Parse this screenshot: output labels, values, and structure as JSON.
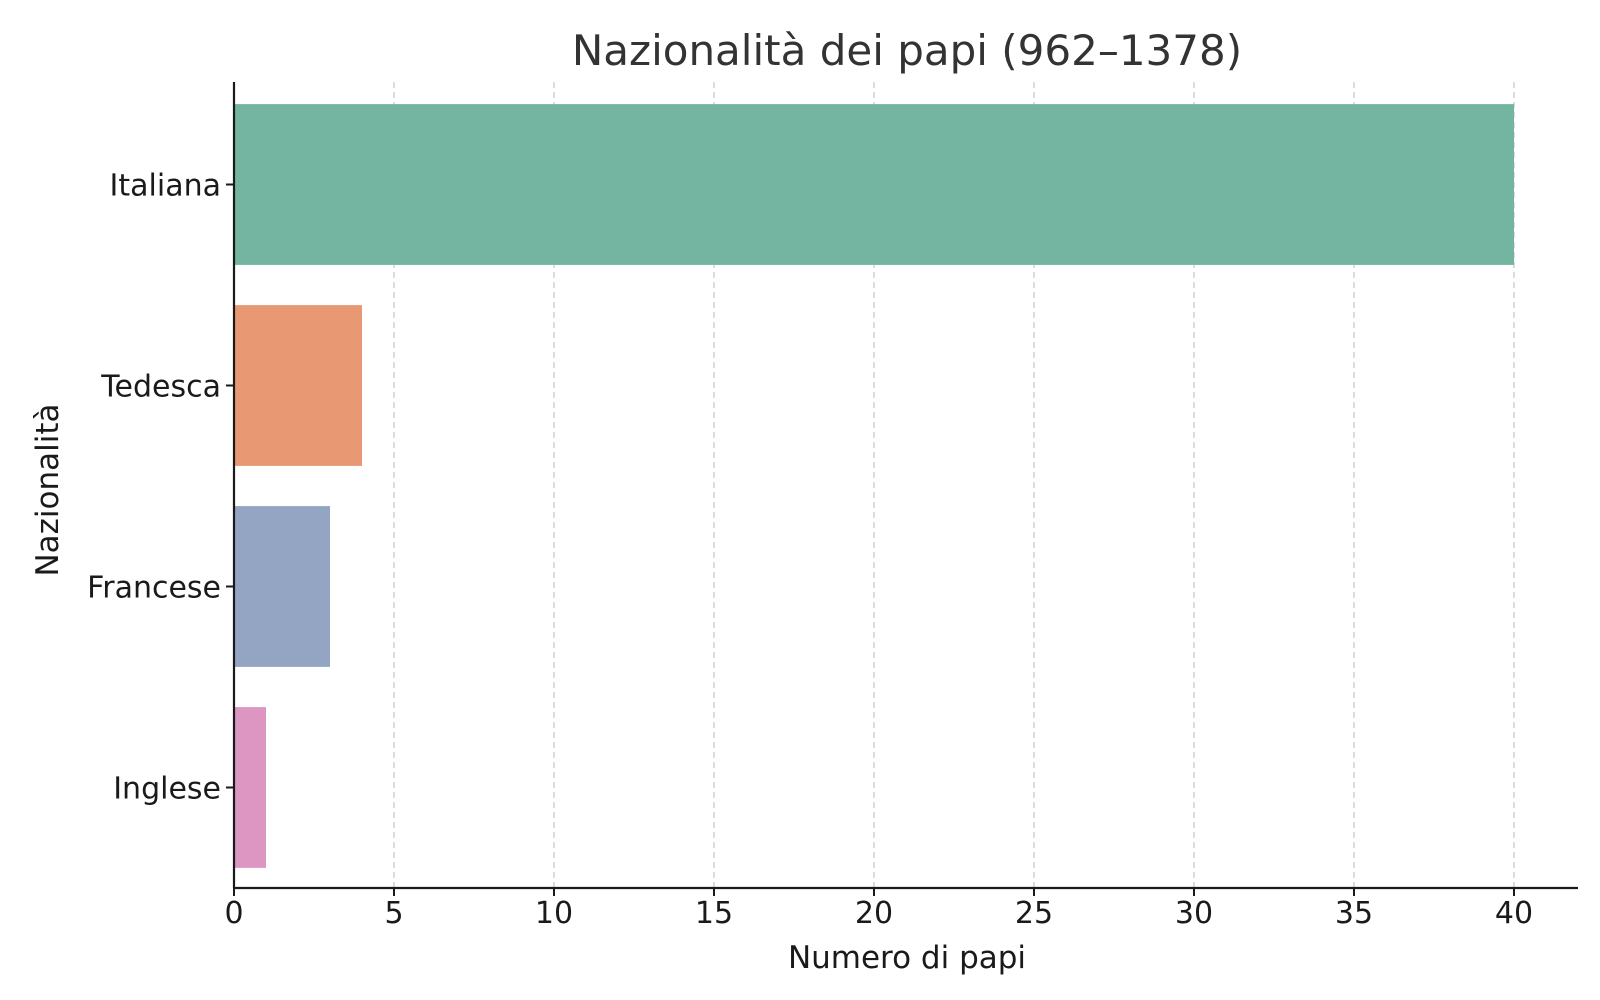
{
  "chart_data": {
    "type": "bar",
    "orientation": "horizontal",
    "title": "Nazionalità dei papi (962–1378)",
    "xlabel": "Numero di papi",
    "ylabel": "Nazionalità",
    "categories": [
      "Italiana",
      "Tedesca",
      "Francese",
      "Inglese"
    ],
    "values": [
      40,
      4,
      3,
      1
    ],
    "colors": [
      "#73b5a0",
      "#e99874",
      "#94a5c3",
      "#dc96c1"
    ],
    "xlim": [
      0,
      42
    ],
    "xticks": [
      0,
      5,
      10,
      15,
      20,
      25,
      30,
      35,
      40
    ],
    "grid": "x-dashed",
    "legend": "none"
  }
}
